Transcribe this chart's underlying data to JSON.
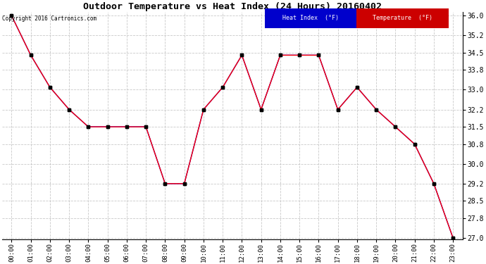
{
  "title": "Outdoor Temperature vs Heat Index (24 Hours) 20160402",
  "copyright": "Copyright 2016 Cartronics.com",
  "x_labels": [
    "00:00",
    "01:00",
    "02:00",
    "03:00",
    "04:00",
    "05:00",
    "06:00",
    "07:00",
    "08:00",
    "09:00",
    "10:00",
    "11:00",
    "12:00",
    "13:00",
    "14:00",
    "15:00",
    "16:00",
    "17:00",
    "18:00",
    "19:00",
    "20:00",
    "21:00",
    "22:00",
    "23:00"
  ],
  "temperature": [
    36.0,
    34.4,
    33.1,
    32.2,
    31.5,
    31.5,
    31.5,
    31.5,
    29.2,
    29.2,
    32.2,
    33.1,
    34.4,
    32.2,
    34.4,
    34.4,
    34.4,
    32.2,
    33.1,
    32.2,
    31.5,
    30.8,
    29.2,
    27.0
  ],
  "heat_index": [
    36.0,
    34.4,
    33.1,
    32.2,
    31.5,
    31.5,
    31.5,
    31.5,
    29.2,
    29.2,
    32.2,
    33.1,
    34.4,
    32.2,
    34.4,
    34.4,
    34.4,
    32.2,
    33.1,
    32.2,
    31.5,
    30.8,
    29.2,
    27.0
  ],
  "temp_color": "#FF0000",
  "heat_color": "#0000FF",
  "bg_color": "#FFFFFF",
  "plot_bg_color": "#FFFFFF",
  "grid_color": "#BBBBBB",
  "ylim_min": 26.95,
  "ylim_max": 36.15,
  "yticks": [
    27.0,
    27.8,
    28.5,
    29.2,
    30.0,
    30.8,
    31.5,
    32.2,
    33.0,
    33.8,
    34.5,
    35.2,
    36.0
  ],
  "ytick_labels": [
    "27.0",
    "27.8",
    "28.5",
    "29.2",
    "30.0",
    "30.8",
    "31.5",
    "32.2",
    "33.0",
    "33.8",
    "34.5",
    "35.2",
    "36.0"
  ],
  "legend_heat_bg": "#0000CC",
  "legend_temp_bg": "#CC0000",
  "legend_heat_text": "Heat Index  (°F)",
  "legend_temp_text": "Temperature  (°F)"
}
